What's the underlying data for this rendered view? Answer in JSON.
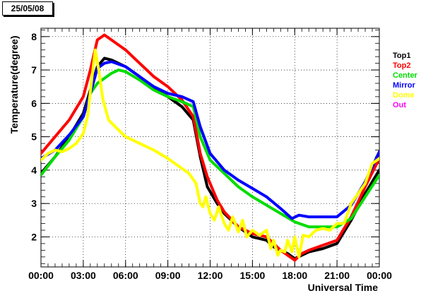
{
  "date_label": "25/05/08",
  "chart_data": {
    "type": "line",
    "title": "",
    "xlabel": "Universal Time",
    "ylabel": "Temperature(degree)",
    "xlim": [
      0,
      24
    ],
    "ylim": [
      1.1,
      8.25
    ],
    "grid": true,
    "legend_position": "right",
    "x_ticks": [
      0,
      3,
      6,
      9,
      12,
      15,
      18,
      21,
      24
    ],
    "x_tick_labels": [
      "00:00",
      "03:00",
      "06:00",
      "09:00",
      "12:00",
      "15:00",
      "18:00",
      "21:00",
      "00:00"
    ],
    "y_ticks": [
      2,
      3,
      4,
      5,
      6,
      7,
      8
    ],
    "y_tick_labels": [
      "2",
      "3",
      "4",
      "5",
      "6",
      "7",
      "8"
    ],
    "series": [
      {
        "name": "Top1",
        "color": "#000000",
        "x": [
          0,
          1,
          2,
          3,
          3.5,
          4,
          4.5,
          5,
          6,
          7,
          8,
          9,
          10,
          10.8,
          11.3,
          11.8,
          12.5,
          13,
          14,
          15,
          16,
          16.5,
          17,
          17.5,
          18,
          18.5,
          19,
          20,
          21,
          22,
          23,
          24
        ],
        "y": [
          3.9,
          4.4,
          5.0,
          5.7,
          6.4,
          7.1,
          7.35,
          7.3,
          7.1,
          6.8,
          6.45,
          6.2,
          5.9,
          5.5,
          4.4,
          3.5,
          3.0,
          2.7,
          2.3,
          2.0,
          1.9,
          1.7,
          1.6,
          1.5,
          1.35,
          1.45,
          1.55,
          1.65,
          1.8,
          2.5,
          3.3,
          4.0
        ]
      },
      {
        "name": "Top2",
        "color": "#ff0000",
        "x": [
          0,
          1,
          2,
          3,
          3.5,
          4,
          4.5,
          5,
          6,
          7,
          8,
          9,
          10,
          10.8,
          11.3,
          11.8,
          12.5,
          13,
          14,
          15,
          16,
          16.5,
          17,
          17.5,
          18,
          18.5,
          19,
          20,
          21,
          22,
          23,
          24
        ],
        "y": [
          4.5,
          5.0,
          5.5,
          6.2,
          7.0,
          7.9,
          8.05,
          7.9,
          7.6,
          7.2,
          6.8,
          6.5,
          6.1,
          5.6,
          4.5,
          3.8,
          3.1,
          2.75,
          2.3,
          2.1,
          2.0,
          1.8,
          1.6,
          1.45,
          1.3,
          1.5,
          1.6,
          1.75,
          1.9,
          2.6,
          3.5,
          4.35
        ]
      },
      {
        "name": "Center",
        "color": "#00dd00",
        "x": [
          0,
          1,
          2,
          3,
          3.5,
          4,
          5,
          5.5,
          6,
          7,
          8,
          9,
          10,
          10.8,
          11.3,
          12,
          13,
          14,
          15,
          16,
          17,
          18,
          19,
          20,
          21,
          22,
          23,
          24
        ],
        "y": [
          3.85,
          4.4,
          4.9,
          5.6,
          6.3,
          6.6,
          6.9,
          7.0,
          6.95,
          6.7,
          6.4,
          6.2,
          6.05,
          5.9,
          5.0,
          4.3,
          3.9,
          3.5,
          3.2,
          2.95,
          2.7,
          2.45,
          2.3,
          2.3,
          2.3,
          2.55,
          3.2,
          3.85
        ]
      },
      {
        "name": "Mirror",
        "color": "#0000ff",
        "x": [
          0,
          1,
          2,
          3,
          3.5,
          4,
          4.5,
          5,
          6,
          7,
          8,
          9,
          10,
          10.8,
          11.3,
          12,
          13,
          14,
          15,
          16,
          17,
          17.8,
          18.3,
          19,
          20,
          21,
          22,
          23,
          24
        ],
        "y": [
          4.35,
          4.6,
          5.05,
          5.6,
          6.3,
          7.05,
          7.2,
          7.25,
          7.1,
          6.8,
          6.5,
          6.3,
          6.2,
          6.05,
          5.3,
          4.5,
          4.0,
          3.7,
          3.45,
          3.2,
          2.85,
          2.55,
          2.65,
          2.6,
          2.6,
          2.6,
          2.95,
          3.65,
          4.55
        ]
      },
      {
        "name": "Dome",
        "color": "#ffff00",
        "x": [
          0,
          0.5,
          1,
          1.5,
          2,
          2.5,
          3,
          3.3,
          3.6,
          3.85,
          4.1,
          4.4,
          4.8,
          5.5,
          6,
          7,
          8,
          9,
          9.5,
          10,
          10.5,
          11,
          11.3,
          11.5,
          11.7,
          12,
          12.3,
          12.6,
          13,
          13.3,
          13.6,
          14,
          14.3,
          14.6,
          15,
          15.5,
          16,
          16.3,
          16.5,
          16.8,
          17,
          17.3,
          17.5,
          17.8,
          18,
          18.3,
          18.6,
          19,
          19.5,
          20,
          20.5,
          21,
          21.5,
          22,
          22.5,
          23,
          23.5,
          24
        ],
        "y": [
          4.3,
          4.5,
          4.6,
          4.55,
          4.65,
          4.8,
          5.1,
          5.6,
          6.7,
          7.6,
          7.0,
          6.1,
          5.5,
          5.2,
          5.0,
          4.8,
          4.6,
          4.35,
          4.2,
          4.05,
          3.9,
          3.6,
          3.0,
          2.9,
          3.2,
          2.7,
          2.5,
          2.9,
          2.4,
          2.2,
          2.6,
          2.15,
          2.5,
          2.0,
          2.2,
          2.05,
          2.2,
          1.65,
          1.9,
          1.45,
          1.6,
          1.55,
          1.9,
          1.55,
          2.0,
          1.4,
          2.05,
          2.0,
          2.2,
          2.25,
          2.2,
          2.4,
          2.4,
          3.0,
          3.3,
          3.6,
          4.2,
          4.35
        ]
      },
      {
        "name": "Out",
        "color": "#ff00ff",
        "x": [],
        "y": []
      }
    ]
  }
}
